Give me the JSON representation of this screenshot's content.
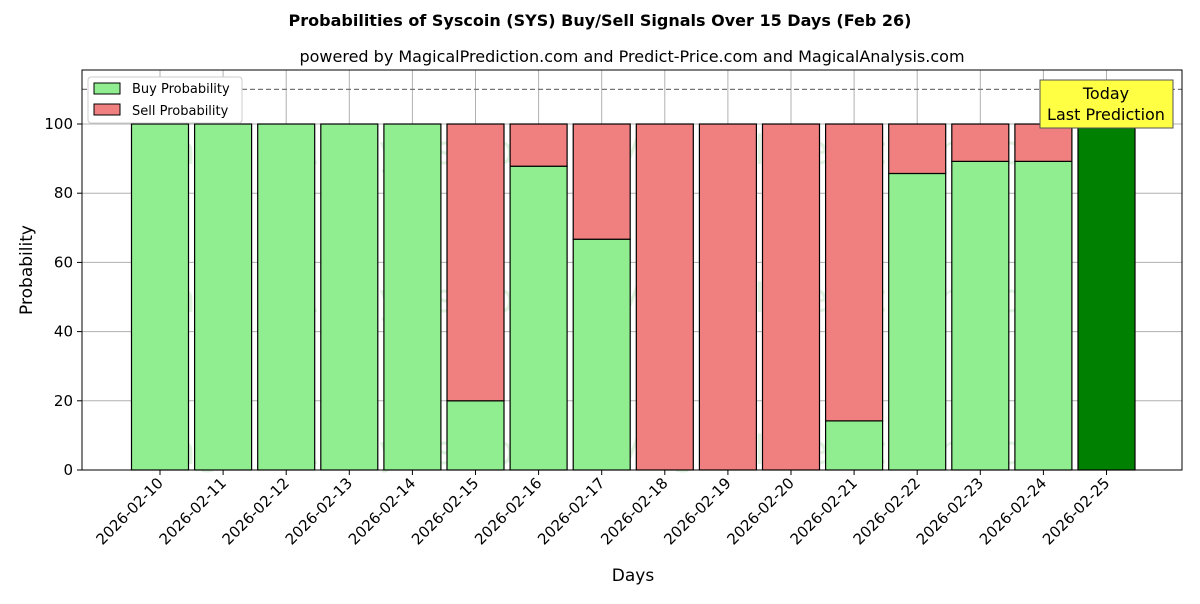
{
  "chart_data": {
    "type": "bar",
    "stacked": true,
    "title": "Probabilities of Syscoin (SYS) Buy/Sell Signals Over 15 Days (Feb 26)",
    "subtitle": "powered by MagicalPrediction.com and Predict-Price.com and MagicalAnalysis.com",
    "xlabel": "Days",
    "ylabel": "Probability",
    "ylim": [
      0,
      115
    ],
    "yticks": [
      0,
      20,
      40,
      60,
      80,
      100
    ],
    "reference_line": 110,
    "grid": true,
    "legend_position": "top-left",
    "categories": [
      "2026-02-10",
      "2026-02-11",
      "2026-02-12",
      "2026-02-13",
      "2026-02-14",
      "2026-02-15",
      "2026-02-16",
      "2026-02-17",
      "2026-02-18",
      "2026-02-19",
      "2026-02-20",
      "2026-02-21",
      "2026-02-22",
      "2026-02-23",
      "2026-02-24",
      "2026-02-25"
    ],
    "series": [
      {
        "name": "Buy Probability",
        "color": "#90ee90",
        "values": [
          100,
          100,
          100,
          100,
          100,
          20,
          87.8,
          66.7,
          0,
          0,
          0,
          14.2,
          85.7,
          89.2,
          89.2,
          100
        ]
      },
      {
        "name": "Sell Probability",
        "color": "#f08080",
        "values": [
          0,
          0,
          0,
          0,
          0,
          80,
          12.2,
          33.3,
          100,
          100,
          100,
          85.8,
          14.3,
          10.8,
          10.8,
          0
        ]
      }
    ],
    "highlight": {
      "index": 15,
      "color": "#008000"
    },
    "annotation": {
      "line1": "Today",
      "line2": "Last Prediction"
    },
    "watermarks": [
      "MagicalAnalysis.com",
      "MagicalPrediction.com"
    ]
  }
}
